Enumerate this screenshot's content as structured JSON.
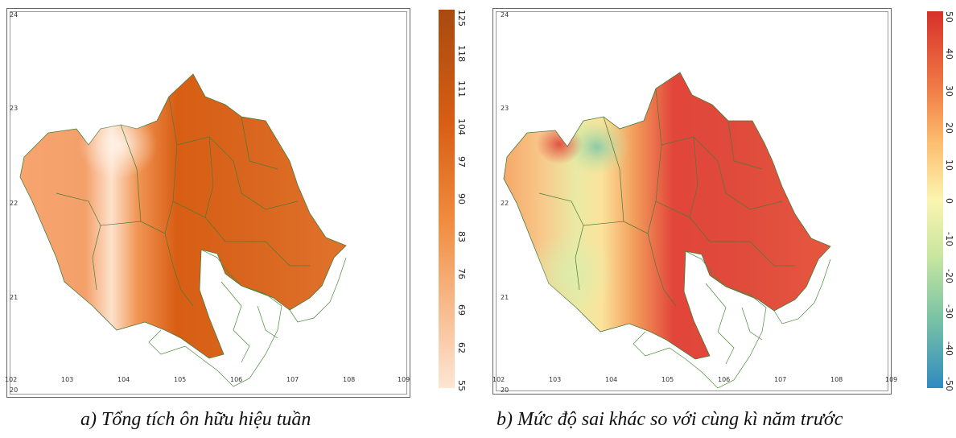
{
  "panel_a": {
    "caption": "a) Tổng tích ôn hữu hiệu tuần",
    "x_ticks": [
      "102",
      "103",
      "104",
      "105",
      "106",
      "107",
      "108",
      "109"
    ],
    "y_ticks": [
      "24",
      "23",
      "22",
      "21",
      "20"
    ],
    "colorbar": {
      "ticks": [
        "125",
        "118",
        "111",
        "104",
        "97",
        "90",
        "83",
        "76",
        "69",
        "62",
        "55"
      ],
      "colors": [
        "#a84a0f",
        "#d85e14",
        "#f08a3c",
        "#f8b98a",
        "#fde6d4"
      ]
    }
  },
  "panel_b": {
    "caption": "b) Mức độ sai khác so với cùng kì năm trước",
    "x_ticks": [
      "102",
      "103",
      "104",
      "105",
      "106",
      "107",
      "108",
      "109"
    ],
    "y_ticks": [
      "24",
      "23",
      "22",
      "21",
      "20"
    ],
    "colorbar": {
      "ticks": [
        "50",
        "40",
        "30",
        "20",
        "10",
        "0",
        "-10",
        "-20",
        "-30",
        "-40",
        "-50"
      ],
      "colors": [
        "#d7302a",
        "#f07a45",
        "#fdbe6f",
        "#fbf5b0",
        "#c8e6a0",
        "#78c2a6",
        "#2f8ac0"
      ]
    }
  }
}
